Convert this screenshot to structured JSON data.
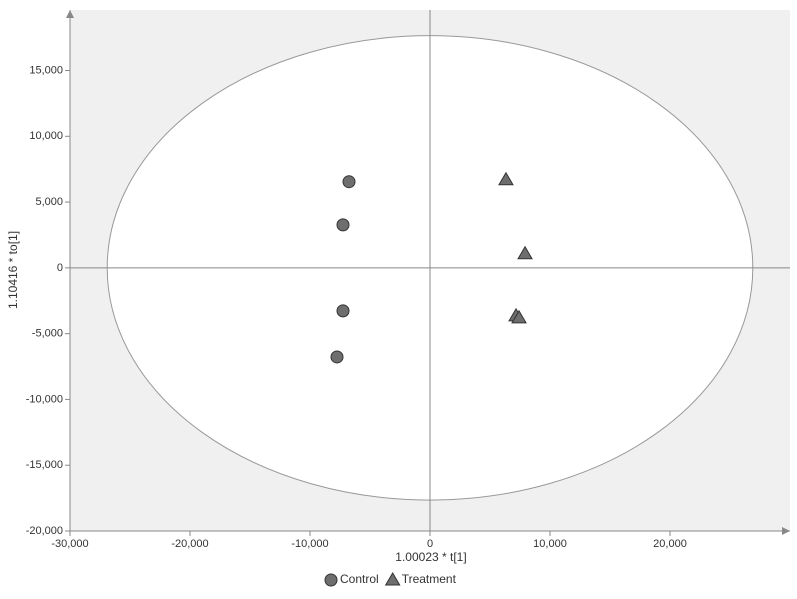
{
  "chart_data": {
    "type": "scatter",
    "x_label": "1.00023 * t[1]",
    "y_label": "1.10416 * to[1]",
    "xlim": [
      -30000,
      30000
    ],
    "ylim": [
      -20000,
      19600
    ],
    "xticks": [
      {
        "value": -30000,
        "label": "-30,000"
      },
      {
        "value": -20000,
        "label": "-20,000"
      },
      {
        "value": -10000,
        "label": "-10,000"
      },
      0,
      {
        "value": 10000,
        "label": "10,000"
      },
      {
        "value": 20000,
        "label": "20,000"
      }
    ],
    "yticks": [
      {
        "value": -20000,
        "label": "-20,000"
      },
      {
        "value": -15000,
        "label": "-15,000"
      },
      {
        "value": -10000,
        "label": "-10,000"
      },
      {
        "value": -5000,
        "label": "-5,000"
      },
      0,
      {
        "value": 5000,
        "label": "5,000"
      },
      {
        "value": 10000,
        "label": "10,000"
      },
      {
        "value": 15000,
        "label": "15,000"
      }
    ],
    "ellipse_radii": [
      26900,
      17650
    ],
    "series": [
      {
        "name": "Control",
        "color": "#6e6e6e",
        "marker": "circle",
        "x": [
          -6750,
          -7250,
          -7250,
          -7750
        ],
        "values": [
          6550,
          3270,
          -3270,
          -6770
        ]
      },
      {
        "name": "Treatment",
        "color": "#6e6e6e",
        "marker": "triangle",
        "x": [
          6330,
          7920,
          7170,
          7420
        ],
        "values": [
          6700,
          1070,
          -3650,
          -3800
        ]
      }
    ]
  }
}
